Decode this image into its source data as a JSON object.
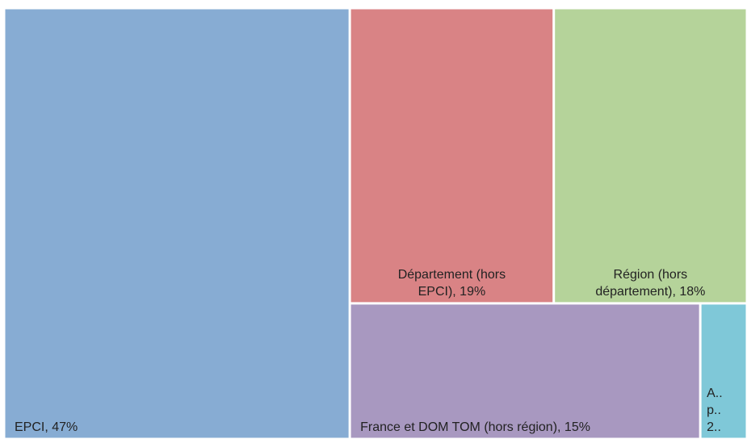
{
  "chart_data": {
    "type": "treemap",
    "labels": [
      [
        "EPCI, 47%"
      ],
      [
        "Département (hors",
        "EPCI), 19%"
      ],
      [
        "Région (hors",
        "département), 18%"
      ],
      [
        "France et DOM TOM (hors région), 15%"
      ],
      [
        "A..",
        "p..",
        "2.."
      ]
    ],
    "values": [
      47,
      19,
      18,
      15,
      2
    ],
    "colors": [
      "#87acd3",
      "#d98385",
      "#b5d39a",
      "#a898c0",
      "#7fc8d8"
    ]
  }
}
